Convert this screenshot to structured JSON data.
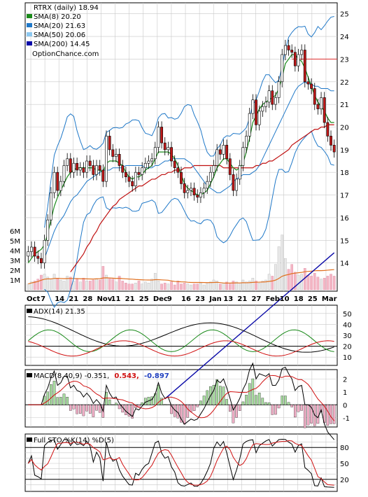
{
  "chart_data": [
    {
      "type": "candlestick",
      "title": "RTRX (daily) 18.94",
      "watermark": "OptionChance.com",
      "legend_position": "top-left",
      "legend": [
        {
          "label": "SMA(8) 20.20",
          "color": "#1a8a1a"
        },
        {
          "label": "SMA(20) 21.63",
          "color": "#1f78c8"
        },
        {
          "label": "SMA(50) 20.06",
          "color": "#8cc8f0"
        },
        {
          "label": "SMA(200) 14.45",
          "color": "#0a0aa8"
        }
      ],
      "x_ticks": [
        "Oct",
        "7",
        "14",
        "21",
        "28",
        "Nov",
        "11",
        "21",
        "25",
        "Dec",
        "9",
        "16",
        "23",
        "Jan",
        "13",
        "21",
        "27",
        "Feb",
        "10",
        "18",
        "25",
        "Mar"
      ],
      "price_ticks": [
        "25",
        "24",
        "23",
        "22",
        "21",
        "20",
        "19",
        "18",
        "17",
        "16",
        "15",
        "14"
      ],
      "volume_ticks": [
        "6M",
        "5M",
        "4M",
        "3M",
        "2M",
        "1M"
      ],
      "ylim": [
        13,
        25.3
      ],
      "series": {
        "close": [
          14.5,
          14.7,
          14.3,
          14.2,
          14.0,
          15.0,
          15.9,
          17.1,
          18.0,
          17.2,
          17.6,
          18.3,
          18.6,
          18.0,
          18.4,
          18.1,
          18.2,
          18.0,
          18.5,
          18.3,
          17.9,
          18.3,
          18.1,
          17.6,
          19.6,
          19.0,
          18.7,
          18.8,
          18.3,
          18.0,
          17.8,
          17.6,
          17.4,
          18.0,
          17.9,
          18.2,
          18.4,
          18.5,
          18.6,
          19.1,
          20.0,
          19.3,
          19.0,
          19.1,
          18.5,
          18.2,
          18.0,
          17.5,
          17.1,
          17.2,
          17.3,
          17.0,
          16.9,
          17.1,
          17.3,
          17.6,
          18.0,
          18.3,
          19.0,
          18.8,
          19.2,
          18.6,
          17.9,
          17.2,
          17.7,
          18.3,
          19.1,
          19.6,
          20.6,
          21.2,
          20.1,
          20.7,
          20.9,
          21.1,
          21.6,
          21.0,
          21.3,
          22.0,
          23.2,
          23.6,
          23.4,
          23.3,
          22.7,
          23.2,
          23.4,
          22.0,
          21.9,
          21.7,
          21.0,
          20.8,
          21.3,
          20.2,
          19.6,
          19.2,
          18.9
        ]
      },
      "sma": {
        "8": [
          14.0,
          14.2,
          14.4,
          14.5,
          14.6,
          14.8,
          15.3,
          15.9,
          16.5,
          16.9,
          17.2,
          17.5,
          17.8,
          18.0,
          18.1,
          18.2,
          18.2,
          18.2,
          18.2,
          18.2,
          18.2,
          18.1,
          18.1,
          18.0,
          18.4,
          18.5,
          18.5,
          18.5,
          18.4,
          18.3,
          18.0,
          17.8,
          17.7,
          17.8,
          17.8,
          17.9,
          18.1,
          18.2,
          18.3,
          18.6,
          18.9,
          18.9,
          18.9,
          18.9,
          18.8,
          18.6,
          18.3,
          17.9,
          17.5,
          17.3,
          17.2,
          17.1,
          17.0,
          17.0,
          17.1,
          17.2,
          17.5,
          17.8,
          18.2,
          18.4,
          18.6,
          18.6,
          18.4,
          18.2,
          18.1,
          18.2,
          18.4,
          18.9,
          19.5,
          20.2,
          20.5,
          20.8,
          21.0,
          21.1,
          21.2,
          21.3,
          21.4,
          21.7,
          22.2,
          22.8,
          23.0,
          23.2,
          23.2,
          23.0,
          22.9,
          22.6,
          22.2,
          21.8,
          21.4,
          21.1,
          20.9,
          20.7,
          20.4,
          20.2,
          20.2
        ],
        "20": [
          14.2,
          14.6,
          15.0,
          15.4,
          15.7,
          15.9,
          16.1,
          16.4,
          16.7,
          16.9,
          17.0,
          17.2,
          17.4,
          17.6,
          17.7,
          17.8,
          17.9,
          18.0,
          18.1,
          18.1,
          18.1,
          18.2,
          18.2,
          18.2,
          18.2,
          18.3,
          18.3,
          18.3,
          18.3,
          18.3,
          18.3,
          18.2,
          18.2,
          18.2,
          18.3,
          18.3,
          18.4,
          18.5,
          18.5,
          18.6,
          18.6,
          18.6,
          18.6,
          18.6,
          18.5,
          18.4,
          18.2,
          18.0,
          17.8,
          17.6,
          17.4,
          17.3,
          17.2,
          17.1,
          17.1,
          17.2,
          17.3,
          17.4,
          17.6,
          17.7,
          17.8,
          17.9,
          17.9,
          17.9,
          18.0,
          18.1,
          18.3,
          18.6,
          18.9,
          19.2,
          19.5,
          19.8,
          20.1,
          20.4,
          20.7,
          21.0,
          21.3,
          21.6,
          21.8,
          21.9,
          22.0,
          21.9,
          21.9,
          21.8,
          21.8,
          21.7,
          21.7,
          21.7,
          21.6,
          21.6
        ],
        "50": [
          13.6,
          13.8,
          14.0,
          14.2,
          14.4,
          14.7,
          14.9,
          15.2,
          15.4,
          15.7,
          15.9,
          16.1,
          16.3,
          16.5,
          16.6,
          16.8,
          16.9,
          17.0,
          17.1,
          17.2,
          17.3,
          17.4,
          17.4,
          17.5,
          17.6,
          17.7,
          17.7,
          17.8,
          17.9,
          17.9,
          18.0,
          18.0,
          18.1,
          18.1,
          18.1,
          18.2,
          18.2,
          18.2,
          18.3,
          18.3,
          18.3,
          18.3,
          18.3,
          18.3,
          18.3,
          18.3,
          18.3,
          18.2,
          18.2,
          18.2,
          18.2,
          18.2,
          18.2,
          18.2,
          18.2,
          18.2,
          18.2,
          18.3,
          18.3,
          18.4,
          18.4,
          18.5,
          18.5,
          18.6,
          18.7,
          18.8,
          18.9,
          19.0,
          19.2,
          19.3,
          19.4,
          19.5,
          19.6,
          19.7,
          19.8,
          19.9,
          19.9,
          20.0,
          20.0,
          20.1,
          20.1,
          20.1
        ],
        "200": [
          null,
          null,
          null,
          null,
          null,
          null,
          null,
          null,
          null,
          null,
          null,
          null,
          null,
          null,
          null,
          null,
          null,
          null,
          null,
          null,
          null,
          null,
          null,
          null,
          null,
          null,
          null,
          null,
          null,
          null,
          null,
          null,
          null,
          null,
          null,
          null,
          null,
          null,
          null,
          null,
          null,
          null,
          null,
          null,
          null,
          null,
          null,
          null,
          null,
          null,
          null,
          null,
          null,
          null,
          null,
          null,
          null,
          null,
          null,
          null,
          null,
          null,
          null,
          null,
          null,
          null,
          null,
          null,
          null,
          null,
          null,
          null,
          null,
          null,
          null,
          null,
          null,
          null,
          null,
          null,
          null,
          null,
          null,
          null,
          null,
          null,
          null,
          null,
          null,
          null,
          null,
          null,
          null,
          null,
          null
        ]
      },
      "resistance_line": 23.0,
      "volume_millions": [
        0.6,
        0.8,
        0.9,
        1.1,
        1.5,
        1.6,
        1.3,
        1.1,
        1.6,
        1.2,
        1.0,
        0.9,
        1.4,
        1.3,
        0.9,
        1.1,
        0.8,
        1.2,
        0.9,
        0.9,
        1.0,
        1.1,
        1.0,
        2.4,
        1.5,
        1.2,
        1.1,
        0.8,
        1.4,
        0.9,
        0.7,
        0.6,
        0.6,
        0.7,
        0.9,
        0.6,
        0.8,
        0.7,
        1.1,
        1.7,
        0.9,
        0.6,
        0.7,
        0.6,
        0.8,
        0.5,
        0.9,
        0.6,
        0.7,
        0.6,
        0.5,
        0.6,
        0.6,
        0.7,
        0.5,
        0.7,
        0.8,
        1.0,
        0.9,
        0.6,
        0.7,
        0.8,
        0.6,
        0.9,
        0.8,
        0.7,
        1.0,
        0.8,
        0.9,
        1.2,
        0.9,
        0.7,
        0.9,
        1.0,
        1.6,
        1.4,
        2.6,
        4.4,
        5.6,
        3.2,
        2.1,
        2.6,
        1.8,
        1.5,
        1.6,
        2.2,
        1.5,
        1.4,
        1.7,
        1.3,
        1.1,
        1.2,
        1.4,
        1.6,
        1.4
      ],
      "volume_avg_millions": [
        1.2
      ]
    },
    {
      "type": "line",
      "title": "ADX(14) 21.35",
      "y_ticks": [
        "50",
        "40",
        "30",
        "20",
        "10"
      ],
      "ylim": [
        5,
        55
      ],
      "reference_lines": [
        20
      ],
      "series_colors": {
        "adx": "#000000",
        "plus_di": "#1a8a1a",
        "minus_di": "#d01010"
      }
    },
    {
      "type": "line",
      "title": "MACD(8,40,9) -0.351,",
      "values_text": [
        {
          "label": "0.543,",
          "color": "#d01010"
        },
        {
          "label": "-0.897",
          "color": "#2040c0"
        }
      ],
      "y_ticks": [
        "2",
        "1",
        "0",
        "-1"
      ],
      "ylim": [
        -1.5,
        2.5
      ]
    },
    {
      "type": "line",
      "title": "Full STO %K(14) %D(5)",
      "y_ticks": [
        "80",
        "50",
        "20"
      ],
      "ylim": [
        0,
        100
      ],
      "reference_lines": [
        80,
        20
      ]
    }
  ]
}
